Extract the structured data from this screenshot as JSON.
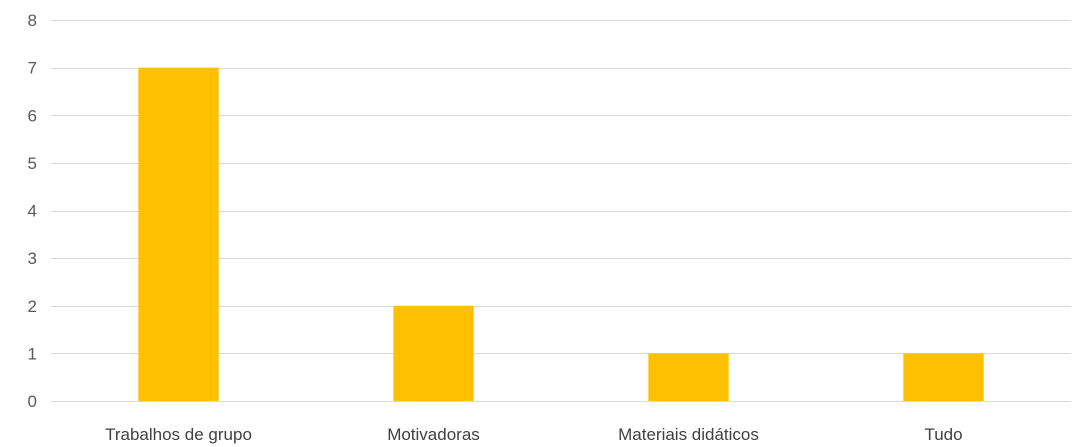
{
  "chart_data": {
    "type": "bar",
    "categories": [
      "Trabalhos de grupo",
      "Motivadoras",
      "Materiais didáticos",
      "Tudo"
    ],
    "values": [
      7,
      2,
      1,
      1
    ],
    "ylim": [
      0,
      8
    ],
    "yticks": [
      0,
      1,
      2,
      3,
      4,
      5,
      6,
      7,
      8
    ],
    "grid": true,
    "title": "",
    "xlabel": "",
    "ylabel": "",
    "colors": {
      "bar": "#FFC000",
      "grid": "#D9D9D9",
      "tick_text": "#595959",
      "category_text": "#404040"
    }
  }
}
